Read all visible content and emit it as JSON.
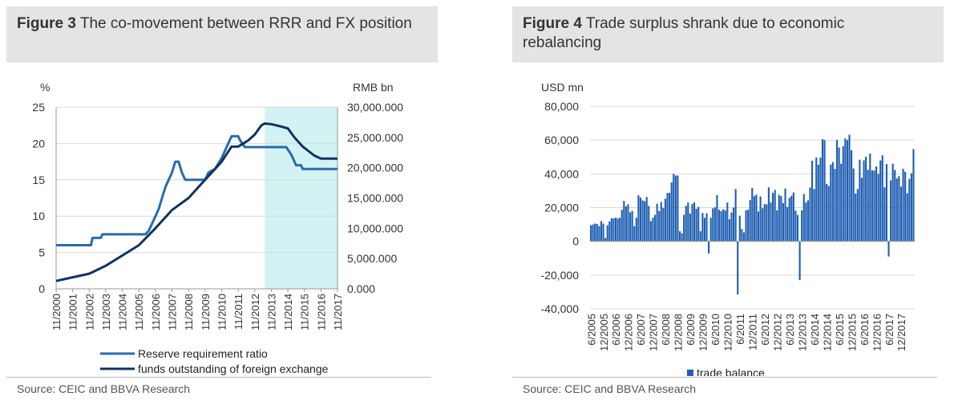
{
  "figures": [
    {
      "number": "Figure 3",
      "title": "The co-movement between RRR and FX position",
      "source": "Source: CEIC and BBVA Research"
    },
    {
      "number": "Figure 4",
      "title": "Trade surplus shrank due to economic rebalancing",
      "source": "Source: CEIC and BBVA Research"
    }
  ],
  "chart_data": [
    {
      "type": "line",
      "y_left_label": "%",
      "y_right_label": "RMB bn",
      "y_left_ticks": [
        "0",
        "5",
        "10",
        "15",
        "20",
        "25"
      ],
      "y_right_ticks": [
        "0.000",
        "5,000.000",
        "10,000.000",
        "15,000.000",
        "20,000.000",
        "25,000.000",
        "30,000.000"
      ],
      "ylim_left": [
        0,
        25
      ],
      "ylim_right": [
        0,
        30000
      ],
      "x_ticks": [
        "11/2000",
        "11/2001",
        "11/2002",
        "11/2003",
        "11/2004",
        "11/2005",
        "11/2006",
        "11/2007",
        "11/2008",
        "11/2009",
        "11/2010",
        "11/2011",
        "11/2012",
        "11/2013",
        "11/2014",
        "11/2015",
        "11/2016",
        "11/2017"
      ],
      "shaded_region": {
        "from": 2013.5,
        "to": 2017.9,
        "color": "#d2f2f4"
      },
      "grid": "horizontal",
      "legend_position": "bottom",
      "series": [
        {
          "name": "Reserve requirement ratio",
          "axis": "left",
          "color": "#2a6bad",
          "points": [
            [
              2000.9,
              6
            ],
            [
              2003.0,
              6
            ],
            [
              2003.1,
              7
            ],
            [
              2003.6,
              7
            ],
            [
              2003.7,
              7.5
            ],
            [
              2006.3,
              7.5
            ],
            [
              2006.5,
              8
            ],
            [
              2006.7,
              9
            ],
            [
              2006.9,
              10
            ],
            [
              2007.1,
              11
            ],
            [
              2007.3,
              12.5
            ],
            [
              2007.5,
              14
            ],
            [
              2007.7,
              15
            ],
            [
              2007.9,
              16
            ],
            [
              2008.1,
              17.5
            ],
            [
              2008.3,
              17.5
            ],
            [
              2008.5,
              16
            ],
            [
              2008.7,
              15
            ],
            [
              2009.9,
              15
            ],
            [
              2010.1,
              16
            ],
            [
              2010.5,
              16.5
            ],
            [
              2010.9,
              18
            ],
            [
              2011.3,
              20
            ],
            [
              2011.5,
              21
            ],
            [
              2011.9,
              21
            ],
            [
              2012.0,
              20.5
            ],
            [
              2012.3,
              19.5
            ],
            [
              2014.8,
              19.5
            ],
            [
              2015.1,
              18.5
            ],
            [
              2015.4,
              17
            ],
            [
              2015.7,
              17
            ],
            [
              2015.8,
              16.5
            ],
            [
              2017.9,
              16.5
            ]
          ]
        },
        {
          "name": "funds outstanding of foreign exchange",
          "axis": "right",
          "color": "#10335f",
          "points": [
            [
              2000.9,
              1300
            ],
            [
              2001.9,
              1900
            ],
            [
              2002.9,
              2500
            ],
            [
              2003.9,
              3800
            ],
            [
              2004.9,
              5500
            ],
            [
              2005.9,
              7200
            ],
            [
              2006.9,
              10000
            ],
            [
              2007.9,
              13000
            ],
            [
              2008.9,
              15000
            ],
            [
              2009.9,
              18000
            ],
            [
              2010.9,
              21000
            ],
            [
              2011.5,
              23500
            ],
            [
              2011.9,
              23500
            ],
            [
              2012.5,
              24500
            ],
            [
              2012.9,
              25500
            ],
            [
              2013.3,
              27000
            ],
            [
              2013.5,
              27300
            ],
            [
              2013.9,
              27200
            ],
            [
              2014.5,
              26800
            ],
            [
              2014.9,
              26500
            ],
            [
              2015.3,
              25000
            ],
            [
              2015.8,
              23500
            ],
            [
              2016.5,
              22000
            ],
            [
              2016.9,
              21500
            ],
            [
              2017.9,
              21500
            ]
          ]
        }
      ]
    },
    {
      "type": "bar",
      "ylabel": "USD mn",
      "y_ticks": [
        "-40,000",
        "-20,000",
        "0",
        "20,000",
        "40,000",
        "60,000",
        "80,000"
      ],
      "ylim": [
        -40000,
        80000
      ],
      "x_ticks": [
        "6/2005",
        "12/2005",
        "6/2006",
        "12/2006",
        "6/2007",
        "12/2007",
        "6/2008",
        "12/2008",
        "6/2009",
        "12/2009",
        "6/2010",
        "12/2010",
        "6/2011",
        "12/2011",
        "6/2012",
        "12/2012",
        "6/2013",
        "12/2013",
        "6/2014",
        "12/2014",
        "6/2015",
        "12/2015",
        "6/2016",
        "12/2016",
        "6/2017",
        "12/2017"
      ],
      "grid": "horizontal",
      "legend_position": "bottom",
      "series": [
        {
          "name": "trade balance",
          "color": "#1f5fb2",
          "values": [
            9600,
            10000,
            10500,
            10300,
            9000,
            12000,
            10500,
            2000,
            9500,
            11800,
            13700,
            13600,
            14100,
            13500,
            14000,
            18700,
            24000,
            20800,
            22000,
            17200,
            18000,
            9000,
            14000,
            27300,
            26000,
            24300,
            23800,
            26300,
            21000,
            12000,
            14000,
            15700,
            22300,
            18000,
            23300,
            19800,
            25300,
            28700,
            28800,
            34900,
            40000,
            39000,
            39000,
            6000,
            4800,
            15700,
            21000,
            23000,
            16500,
            22100,
            23100,
            19300,
            20400,
            6000,
            16800,
            13900,
            16600,
            -7200,
            14000,
            19600,
            20100,
            27400,
            18700,
            17900,
            19000,
            18400,
            23000,
            13100,
            17100,
            20000,
            31000,
            -31500,
            15200,
            7300,
            5300,
            18400,
            18700,
            24500,
            31700,
            26800,
            27700,
            17700,
            26600,
            19600,
            22100,
            21900,
            32000,
            23100,
            28700,
            30500,
            18400,
            27600,
            26900,
            22600,
            31300,
            20300,
            25800,
            27000,
            29000,
            18200,
            15600,
            -23000,
            18300,
            28100,
            23000,
            24300,
            31900,
            47800,
            31000,
            49700,
            45400,
            49600,
            60600,
            60000,
            34100,
            32800,
            45500,
            47000,
            43000,
            60000,
            55600,
            46000,
            56400,
            61000,
            60000,
            63200,
            54000,
            43200,
            28300,
            31000,
            48400,
            37700,
            48000,
            50200,
            42400,
            52000,
            42000,
            42000,
            44400,
            40000,
            48000,
            51000,
            32000,
            45800,
            -9000,
            36200,
            46000,
            42300,
            37300,
            38600,
            32400,
            43000,
            41200,
            28500,
            37000,
            40300,
            54700
          ]
        }
      ]
    }
  ]
}
